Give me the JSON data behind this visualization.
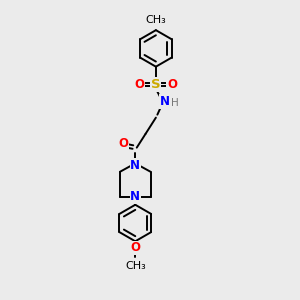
{
  "bg_color": "#ebebeb",
  "bond_color": "#000000",
  "atom_colors": {
    "O": "#ff0000",
    "N": "#0000ff",
    "S": "#ccaa00",
    "H": "#777777",
    "C": "#000000"
  },
  "font_size": 8.5,
  "lw": 1.4
}
